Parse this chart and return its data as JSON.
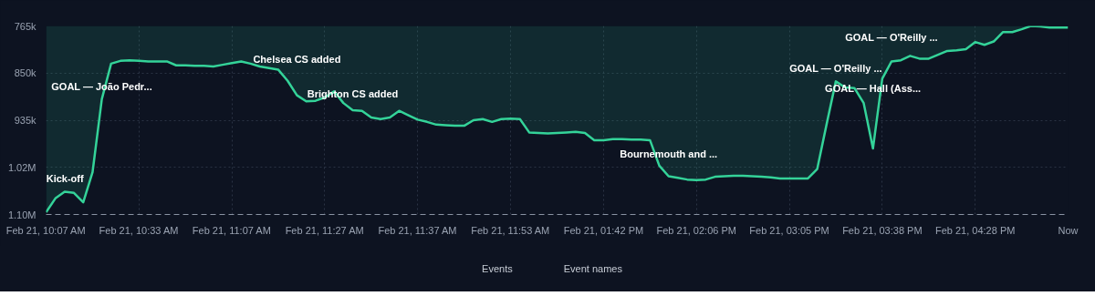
{
  "chart_data": {
    "type": "area",
    "color": "#34d399",
    "categories": [
      "Feb 21, 10:07 AM",
      null,
      null,
      null,
      null,
      null,
      null,
      null,
      null,
      null,
      "Feb 21, 10:33 AM",
      null,
      null,
      null,
      null,
      null,
      null,
      null,
      null,
      null,
      "Feb 21, 11:07 AM",
      null,
      null,
      null,
      null,
      null,
      null,
      null,
      null,
      null,
      "Feb 21, 11:27 AM",
      null,
      null,
      null,
      null,
      null,
      null,
      null,
      null,
      null,
      "Feb 21, 11:37 AM",
      null,
      null,
      null,
      null,
      null,
      null,
      null,
      null,
      null,
      "Feb 21, 11:53 AM",
      null,
      null,
      null,
      null,
      null,
      null,
      null,
      null,
      null,
      "Feb 21, 01:42 PM",
      null,
      null,
      null,
      null,
      null,
      null,
      null,
      null,
      null,
      "Feb 21, 02:06 PM",
      null,
      null,
      null,
      null,
      null,
      null,
      null,
      null,
      null,
      "Feb 21, 03:05 PM",
      null,
      null,
      null,
      null,
      null,
      null,
      null,
      null,
      null,
      "Feb 21, 03:38 PM",
      null,
      null,
      null,
      null,
      null,
      null,
      null,
      null,
      null,
      "Feb 21, 04:28 PM",
      null,
      null,
      null,
      null,
      null,
      null,
      null,
      null,
      null,
      "Now"
    ],
    "values": [
      1101000,
      1076000,
      1064000,
      1066000,
      1083000,
      1029000,
      897000,
      833000,
      828000,
      827000,
      828000,
      829000,
      829000,
      829000,
      836000,
      836000,
      837000,
      837000,
      838000,
      835000,
      832000,
      829000,
      833000,
      838000,
      841000,
      844000,
      864000,
      890000,
      901000,
      900000,
      894000,
      883000,
      904000,
      917000,
      918000,
      930000,
      933000,
      930000,
      918000,
      926000,
      934000,
      938000,
      943000,
      944000,
      945000,
      945000,
      935000,
      933000,
      938000,
      933000,
      932000,
      933000,
      957000,
      958000,
      959000,
      958000,
      957000,
      956000,
      958000,
      971000,
      971000,
      969000,
      969000,
      970000,
      970000,
      971000,
      1017000,
      1036000,
      1039000,
      1042000,
      1043000,
      1042000,
      1037000,
      1036000,
      1035000,
      1035000,
      1036000,
      1037000,
      1038000,
      1040000,
      1040000,
      1040000,
      1040000,
      1023000,
      943000,
      865000,
      876000,
      877000,
      904000,
      986000,
      860000,
      829000,
      827000,
      819000,
      824000,
      824000,
      817000,
      810000,
      809000,
      807000,
      794000,
      799000,
      793000,
      776000,
      776000,
      771000,
      765000,
      766000,
      768000,
      768000,
      768000
    ],
    "ylim": [
      1105000,
      765000
    ],
    "yticks": [
      {
        "value": 765000,
        "label": "765k"
      },
      {
        "value": 850000,
        "label": "850k"
      },
      {
        "value": 935000,
        "label": "935k"
      },
      {
        "value": 1020000,
        "label": "1.02M"
      },
      {
        "value": 1105000,
        "label": "1.10M"
      }
    ],
    "grid": true,
    "annotations": [
      "Kick-off",
      "GOAL — João Pedr...",
      "Chelsea CS added",
      "Brighton CS added",
      "Bournemouth and ...",
      "GOAL — O'Reilly ...",
      "GOAL — Hall (Ass...",
      "GOAL — O'Reilly ...",
      "Events",
      "Event names"
    ]
  }
}
